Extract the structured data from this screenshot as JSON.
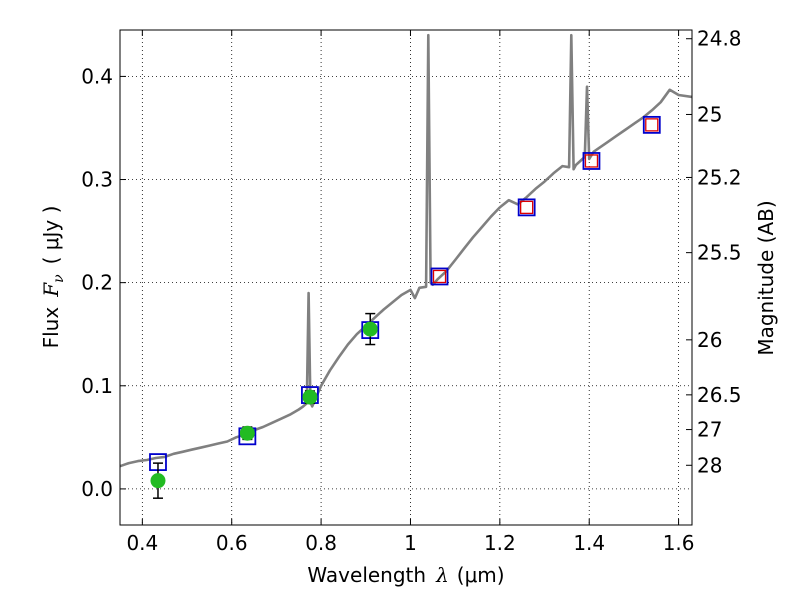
{
  "chart_data": {
    "type": "line",
    "title": "",
    "xlabel": "Wavelength",
    "xlabel_symbol": "λ",
    "xlabel_unit": "(μm)",
    "ylabel": "Flux",
    "ylabel_symbol": "F",
    "ylabel_subscript": "ν",
    "ylabel_unit": "( μJy )",
    "y2label": "Magnitude (AB)",
    "xlim": [
      0.35,
      1.63
    ],
    "ylim": [
      -0.035,
      0.445
    ],
    "xticks": [
      0.4,
      0.6,
      0.8,
      1,
      1.2,
      1.4,
      1.6
    ],
    "xtick_labels": [
      "0.4",
      "0.6",
      "0.8",
      "1",
      "1.2",
      "1.4",
      "1.6"
    ],
    "yticks": [
      0.0,
      0.1,
      0.2,
      0.3,
      0.4
    ],
    "ytick_labels": [
      "0.0",
      "0.1",
      "0.2",
      "0.3",
      "0.4"
    ],
    "y2ticks": [
      {
        "label": "24.8",
        "mag": 24.8
      },
      {
        "label": "25",
        "mag": 25
      },
      {
        "label": "25.2",
        "mag": 25.2
      },
      {
        "label": "25.5",
        "mag": 25.5
      },
      {
        "label": "26",
        "mag": 26
      },
      {
        "label": "26.5",
        "mag": 26.5
      },
      {
        "label": "27",
        "mag": 27
      },
      {
        "label": "28",
        "mag": 28
      }
    ],
    "grid": true,
    "colors": {
      "spectrum": "#808080",
      "observed": "#22bb22",
      "model_box": "#0000cc",
      "model_box_inner": "#dd0000"
    },
    "series": [
      {
        "style": "spectrum",
        "x": [
          0.35,
          0.37,
          0.39,
          0.41,
          0.43,
          0.45,
          0.47,
          0.49,
          0.51,
          0.53,
          0.55,
          0.57,
          0.59,
          0.61,
          0.63,
          0.65,
          0.67,
          0.69,
          0.71,
          0.73,
          0.75,
          0.76,
          0.768,
          0.772,
          0.776,
          0.78,
          0.79,
          0.8,
          0.82,
          0.84,
          0.86,
          0.88,
          0.9,
          0.92,
          0.94,
          0.96,
          0.98,
          1.0,
          1.01,
          1.02,
          1.035,
          1.04,
          1.045,
          1.05,
          1.06,
          1.08,
          1.1,
          1.12,
          1.14,
          1.16,
          1.18,
          1.2,
          1.22,
          1.24,
          1.26,
          1.28,
          1.3,
          1.32,
          1.34,
          1.355,
          1.36,
          1.365,
          1.37,
          1.38,
          1.39,
          1.395,
          1.4,
          1.41,
          1.42,
          1.44,
          1.46,
          1.48,
          1.5,
          1.52,
          1.54,
          1.56,
          1.58,
          1.6,
          1.63
        ],
        "y": [
          0.022,
          0.025,
          0.027,
          0.028,
          0.03,
          0.031,
          0.034,
          0.036,
          0.038,
          0.04,
          0.042,
          0.044,
          0.046,
          0.05,
          0.053,
          0.057,
          0.06,
          0.064,
          0.068,
          0.072,
          0.077,
          0.08,
          0.083,
          0.19,
          0.084,
          0.08,
          0.09,
          0.1,
          0.115,
          0.128,
          0.14,
          0.15,
          0.158,
          0.166,
          0.174,
          0.181,
          0.188,
          0.193,
          0.185,
          0.195,
          0.196,
          0.44,
          0.2,
          0.198,
          0.203,
          0.211,
          0.222,
          0.233,
          0.244,
          0.254,
          0.264,
          0.273,
          0.28,
          0.276,
          0.283,
          0.291,
          0.298,
          0.306,
          0.313,
          0.312,
          0.44,
          0.31,
          0.314,
          0.318,
          0.322,
          0.39,
          0.32,
          0.327,
          0.33,
          0.336,
          0.342,
          0.348,
          0.354,
          0.36,
          0.367,
          0.375,
          0.387,
          0.382,
          0.38
        ]
      },
      {
        "style": "model_boxes",
        "x": [
          0.435,
          0.635,
          0.775,
          0.91,
          1.065,
          1.26,
          1.405,
          1.54
        ],
        "y": [
          0.026,
          0.051,
          0.091,
          0.154,
          0.206,
          0.273,
          0.318,
          0.353
        ],
        "inner_red": [
          false,
          false,
          false,
          false,
          true,
          true,
          true,
          true
        ]
      },
      {
        "style": "observed_points",
        "x": [
          0.435,
          0.635,
          0.775,
          0.91
        ],
        "y": [
          0.008,
          0.054,
          0.089,
          0.155
        ],
        "yerr": [
          0.017,
          0.006,
          0.006,
          0.015
        ]
      }
    ]
  }
}
